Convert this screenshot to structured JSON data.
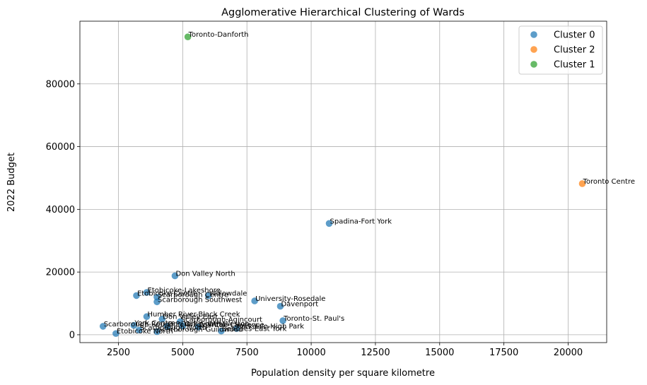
{
  "chart_data": {
    "type": "scatter",
    "title": "Agglomerative Hierarchical Clustering of Wards",
    "xlabel": "Population density per square kilometre",
    "ylabel": "2022 Budget",
    "xlim": [
      1000,
      21500
    ],
    "ylim": [
      -2500,
      100000
    ],
    "xticks": [
      2500,
      5000,
      7500,
      10000,
      12500,
      15000,
      17500,
      20000
    ],
    "yticks": [
      0,
      20000,
      40000,
      60000,
      80000
    ],
    "grid": true,
    "legend_position": "top-right",
    "series": [
      {
        "name": "Cluster 0",
        "color": "#1f77b4",
        "points": [
          {
            "label": "Spadina-Fort York",
            "x": 10700,
            "y": 35500
          },
          {
            "label": "Don Valley North",
            "x": 4700,
            "y": 18800
          },
          {
            "label": "Etobicoke-Lakeshore",
            "x": 3600,
            "y": 13500
          },
          {
            "label": "Etobicoke Centre",
            "x": 3200,
            "y": 12500
          },
          {
            "label": "Scarborough Centre",
            "x": 4000,
            "y": 12000
          },
          {
            "label": "Willowdale",
            "x": 6000,
            "y": 12500
          },
          {
            "label": "Scarborough Southwest",
            "x": 4000,
            "y": 10500
          },
          {
            "label": "University-Rosedale",
            "x": 7800,
            "y": 10800
          },
          {
            "label": "Davenport",
            "x": 8800,
            "y": 9100
          },
          {
            "label": "Humber River-Black Creek",
            "x": 3600,
            "y": 5800
          },
          {
            "label": "Don Valley East",
            "x": 4200,
            "y": 5000
          },
          {
            "label": "Toronto-St. Paul's",
            "x": 8900,
            "y": 4500
          },
          {
            "label": "Scarborough-Agincourt",
            "x": 4900,
            "y": 4200
          },
          {
            "label": "Scarborough-Rouge Park",
            "x": 1900,
            "y": 2700
          },
          {
            "label": "York Centre",
            "x": 3100,
            "y": 3000
          },
          {
            "label": "Don Valley West",
            "x": 4400,
            "y": 2700
          },
          {
            "label": "York South-Weston",
            "x": 5000,
            "y": 2800
          },
          {
            "label": "Eglinton-Lawrence",
            "x": 5600,
            "y": 2500
          },
          {
            "label": "Parkdale-High Park",
            "x": 7100,
            "y": 2000
          },
          {
            "label": "Scarborough North",
            "x": 3300,
            "y": 1500
          },
          {
            "label": "Scarborough-Guildwood",
            "x": 4000,
            "y": 1000
          },
          {
            "label": "Beaches-East York",
            "x": 6500,
            "y": 1200
          },
          {
            "label": "Etobicoke North",
            "x": 2400,
            "y": 400
          }
        ]
      },
      {
        "name": "Cluster 2",
        "color": "#ff7f0e",
        "points": [
          {
            "label": "Toronto Centre",
            "x": 20550,
            "y": 48200
          }
        ]
      },
      {
        "name": "Cluster 1",
        "color": "#2ca02c",
        "points": [
          {
            "label": "Toronto-Danforth",
            "x": 5200,
            "y": 95000
          }
        ]
      }
    ]
  }
}
